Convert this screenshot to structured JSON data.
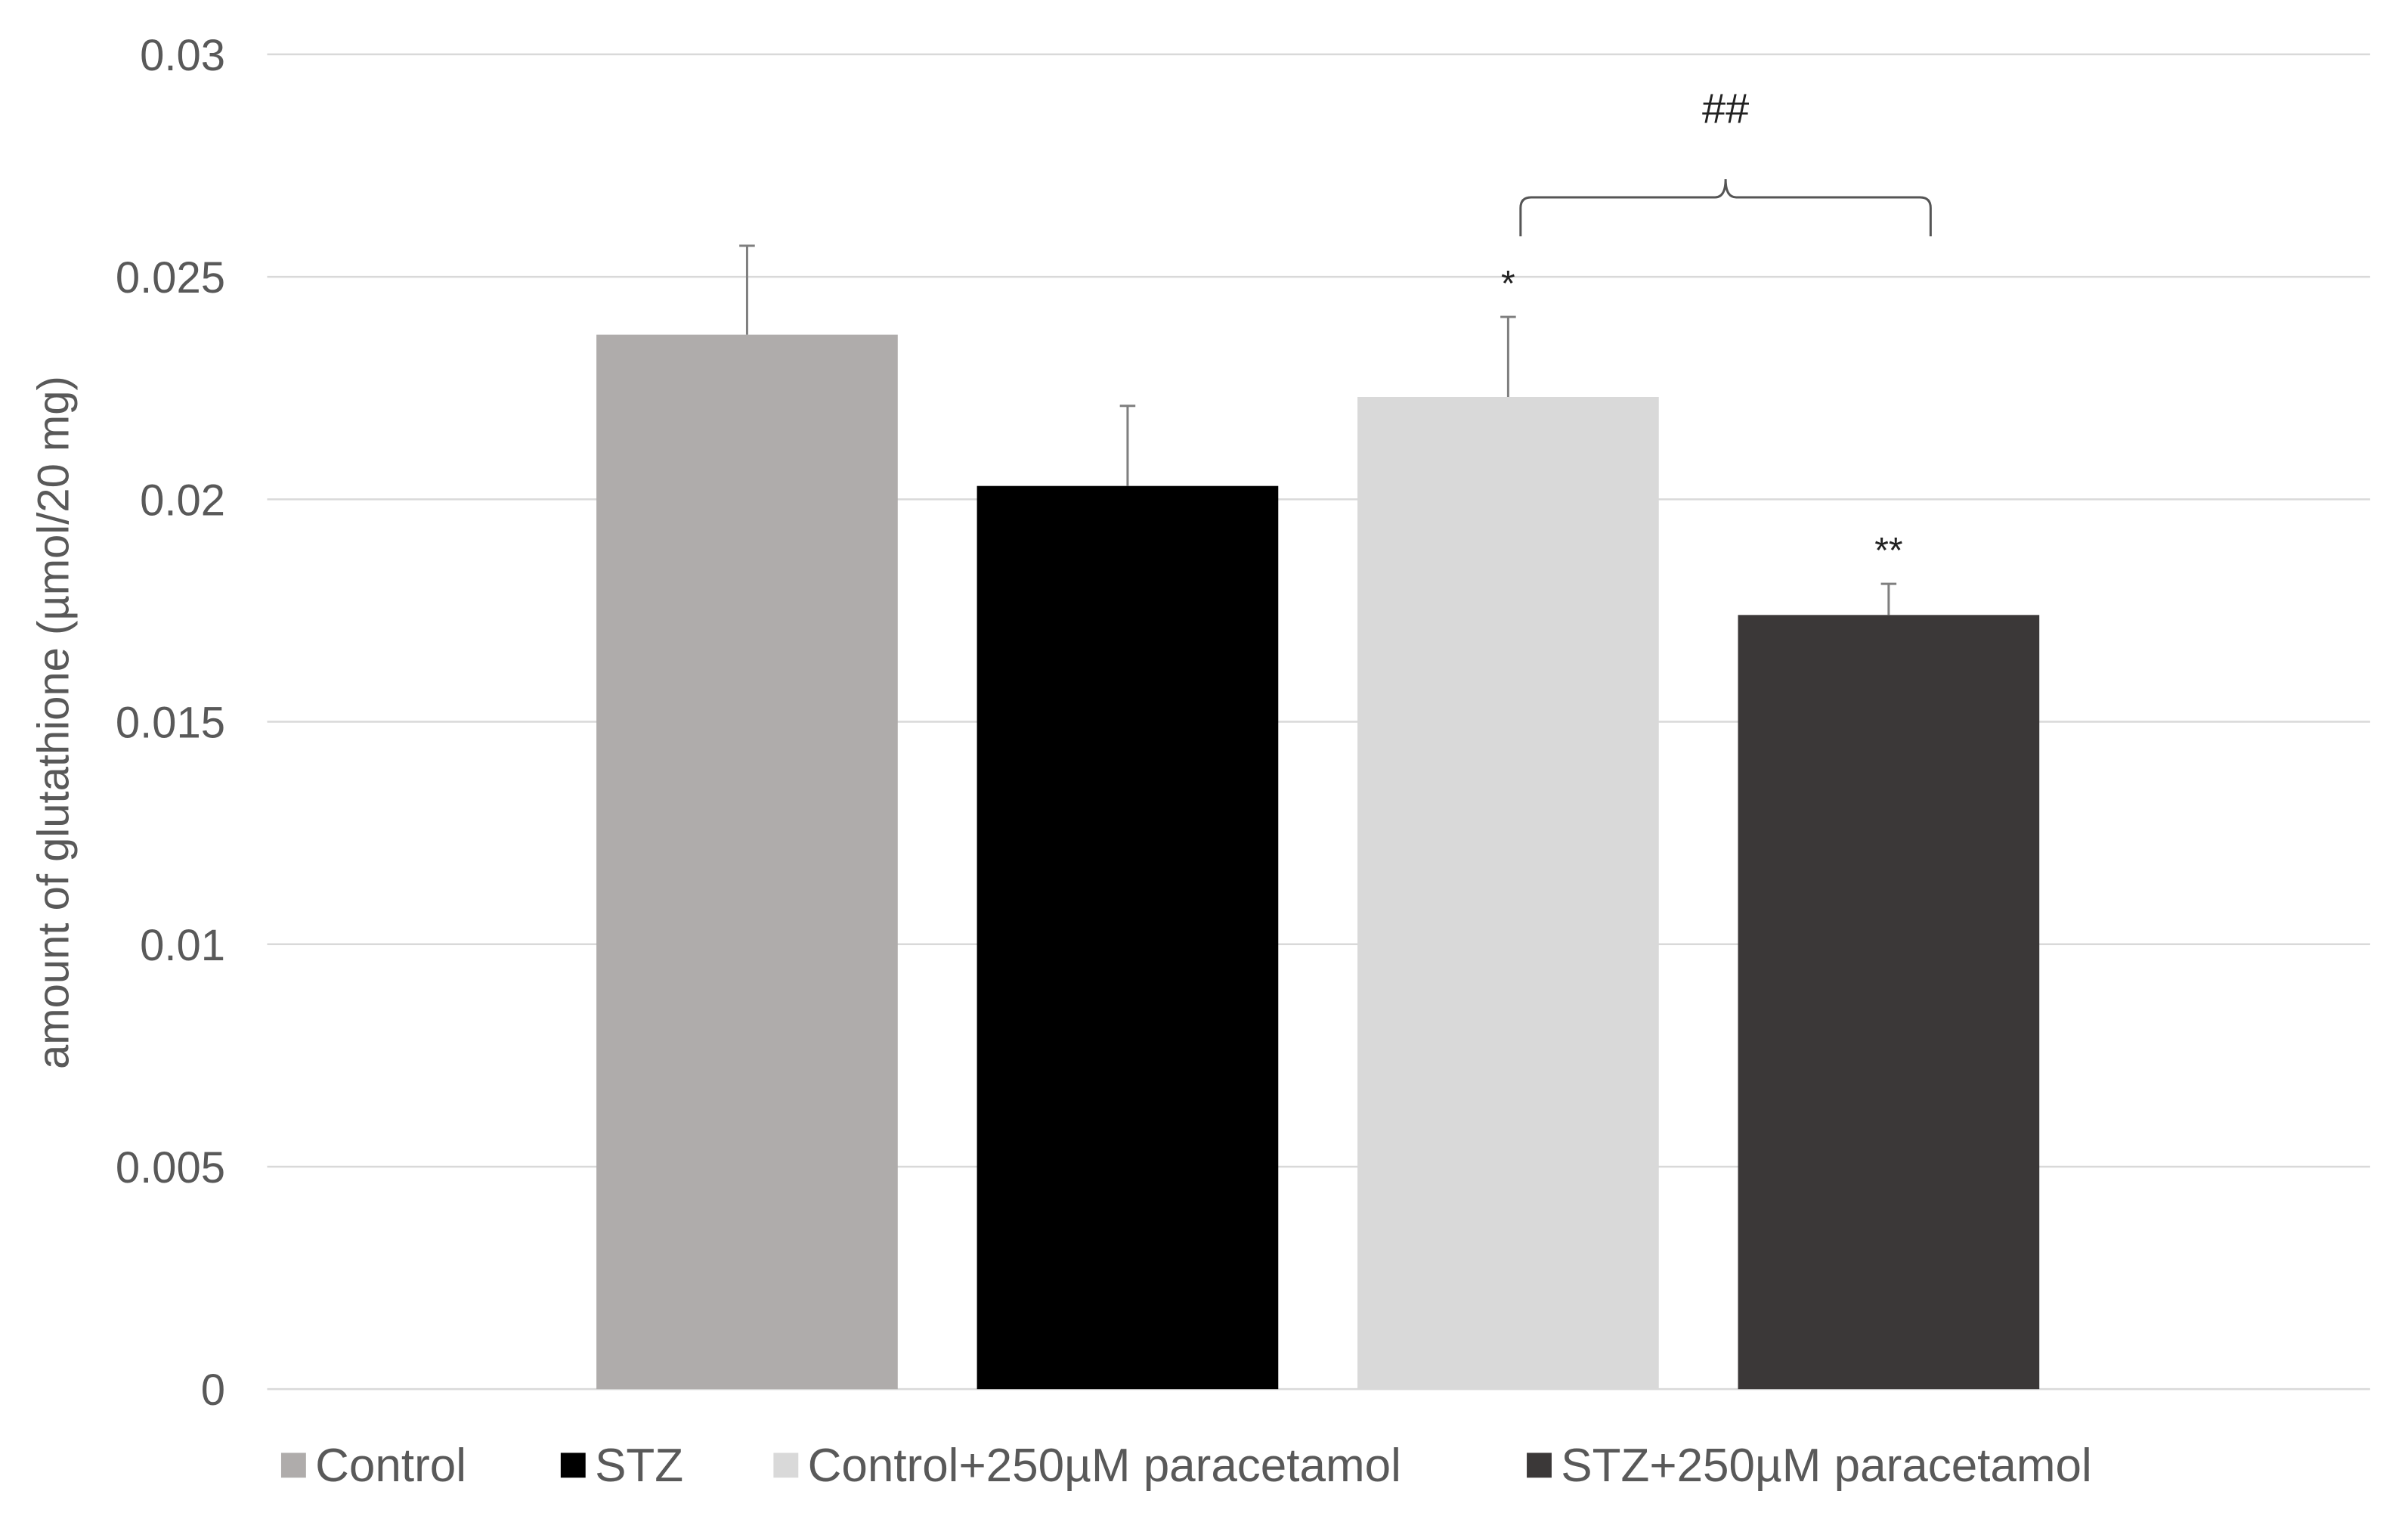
{
  "chart_data": {
    "type": "bar",
    "title": "",
    "xlabel": "",
    "ylabel": "amount of glutathione (µmol/20 mg)",
    "ylim": [
      0,
      0.03
    ],
    "yticks": [
      "0",
      "0.005",
      "0.01",
      "0.015",
      "0.02",
      "0.025",
      "0.03"
    ],
    "grid": "horizontal",
    "legend_position": "bottom",
    "series": [
      {
        "name": "Control",
        "value": 0.0237,
        "error": 0.002,
        "color": "#AFACAB",
        "annotation": ""
      },
      {
        "name": "STZ",
        "value": 0.0203,
        "error": 0.0018,
        "color": "#000000",
        "annotation": ""
      },
      {
        "name": "Control+250µM paracetamol",
        "value": 0.0223,
        "error": 0.0018,
        "color": "#D9D9D9",
        "annotation": "*"
      },
      {
        "name": "STZ+250µM paracetamol",
        "value": 0.0174,
        "error": 0.0007,
        "color": "#3B3838",
        "annotation": "**"
      }
    ],
    "bracket": {
      "from_series": 2,
      "to_series": 3,
      "label": "##"
    }
  }
}
